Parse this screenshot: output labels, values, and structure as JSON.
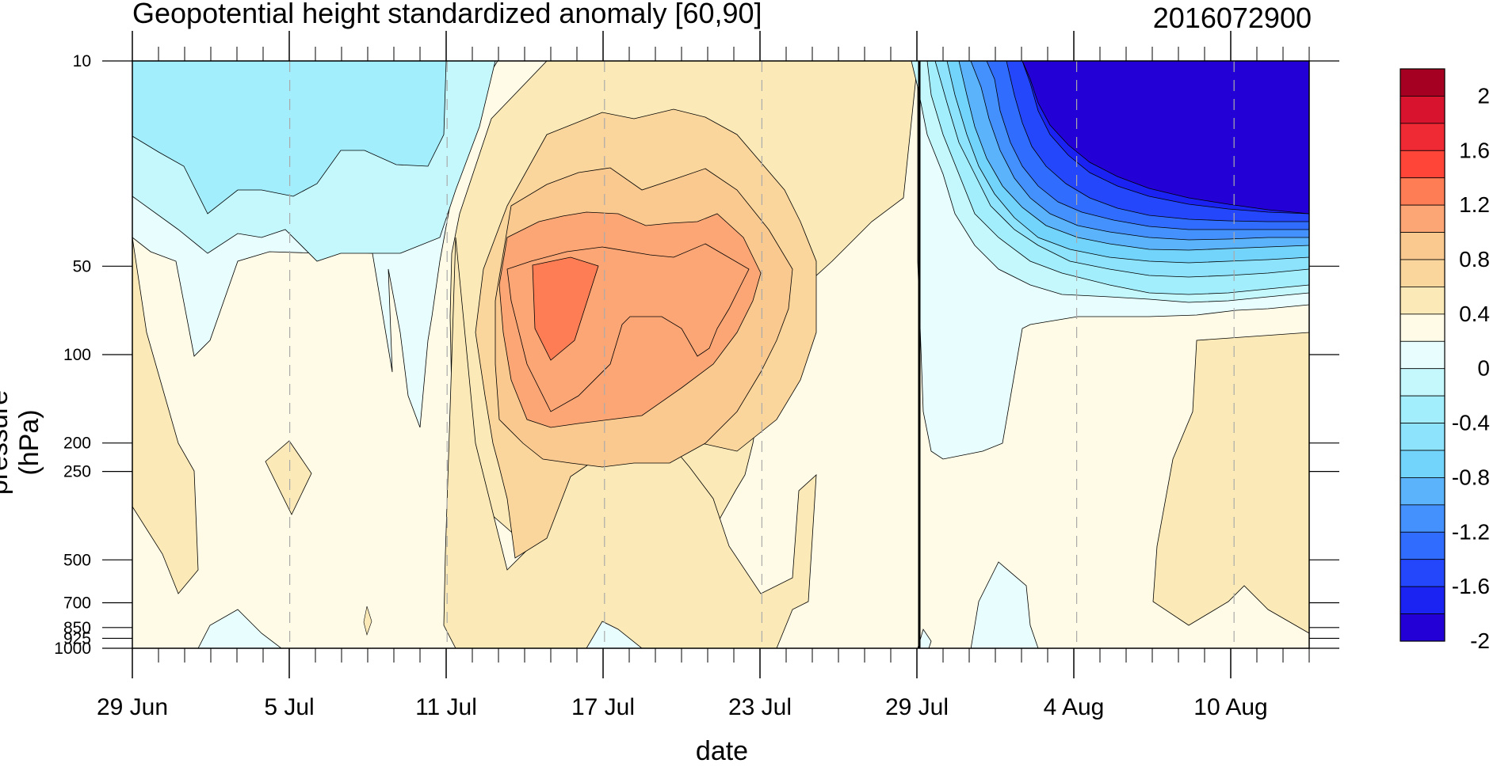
{
  "chart_data": {
    "type": "heatmap",
    "subtype": "filled-contour time-pressure cross-section",
    "title": "Geopotential height standardized anomaly [60,90]",
    "subtitle_right": "2016072900",
    "xlabel": "date",
    "ylabel": "pressure (hPa)",
    "x_ticks": [
      "29 Jun",
      "5 Jul",
      "11 Jul",
      "17 Jul",
      "23 Jul",
      "29 Jul",
      "4 Aug",
      "10 Aug"
    ],
    "x_range_days": [
      0,
      45
    ],
    "x_tick_days": [
      0,
      6,
      12,
      18,
      24,
      30,
      36,
      42
    ],
    "y_ticks": [
      10,
      50,
      100,
      200,
      250,
      500,
      700,
      850,
      925,
      1000
    ],
    "y_tick_labels": [
      "10",
      "50",
      "100",
      "200",
      "250",
      "500",
      "700",
      "850",
      "925",
      "1000"
    ],
    "y_scale": "log",
    "y_range": [
      1000,
      10
    ],
    "reference_line_date": "29 Jul",
    "colorbar": {
      "levels": [
        -2.2,
        -2,
        -1.8,
        -1.6,
        -1.4,
        -1.2,
        -1,
        -0.8,
        -0.6,
        -0.4,
        -0.2,
        0,
        0.2,
        0.4,
        0.6,
        0.8,
        1,
        1.2,
        1.4,
        1.6,
        1.8,
        2,
        2.2
      ],
      "labels": [
        "2",
        "1.6",
        "1.2",
        "0.8",
        "0.4",
        "0",
        "-0.4",
        "-0.8",
        "-1.2",
        "-1.6",
        "-2"
      ],
      "colors_top_to_bottom": [
        "#a50021",
        "#d7132e",
        "#f02a34",
        "#ff4438",
        "#ff7d55",
        "#fca676",
        "#fac98f",
        "#fad59c",
        "#fbeab8",
        "#fffbe6",
        "#e8fdfd",
        "#c4f8fd",
        "#a3eefd",
        "#8de2fc",
        "#72d3fb",
        "#5bb3fc",
        "#4491fd",
        "#306cfd",
        "#2447fc",
        "#1b23f3",
        "#2300d5"
      ]
    },
    "grid": false,
    "legend": "right colorbar"
  }
}
